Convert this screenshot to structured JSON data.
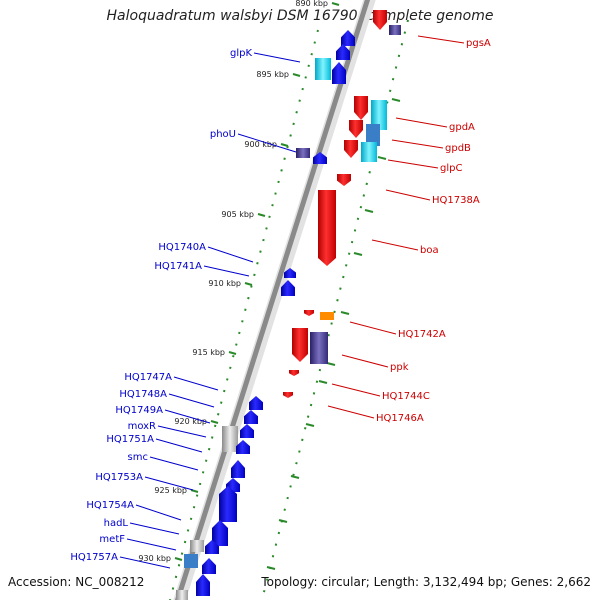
{
  "title": "Haloquadratum walsbyi DSM 16790, complete genome",
  "accession_text": "Accession: NC_008212",
  "topology_text": "Topology: circular; Length: 3,132,494 bp; Genes: 2,662",
  "kbp_marks": [
    "890 kbp",
    "895 kbp",
    "900 kbp",
    "905 kbp",
    "910 kbp",
    "915 kbp",
    "920 kbp",
    "925 kbp",
    "930 kbp"
  ],
  "left_labels": [
    "glpK",
    "phoU",
    "HQ1740A",
    "HQ1741A",
    "HQ1747A",
    "HQ1748A",
    "HQ1749A",
    "moxR",
    "HQ1751A",
    "smc",
    "HQ1753A",
    "HQ1754A",
    "hadL",
    "metF",
    "HQ1757A"
  ],
  "right_labels": [
    "pgsA",
    "gpdA",
    "gpdB",
    "glpC",
    "HQ1738A",
    "boa",
    "HQ1742A",
    "ppk",
    "HQ1744C",
    "HQ1746A"
  ],
  "colors": {
    "forward_gene": "#0000ee",
    "reverse_gene": "#ee0000",
    "left_label": "#0000cc",
    "right_label": "#cc0000",
    "cyan_feature": "#00e0ff",
    "purple_feature": "#4a3f8f",
    "orange_feature": "#ff8c00",
    "grey_feature": "#b8b8b8",
    "kbp_tick": "#2a8a2a"
  }
}
